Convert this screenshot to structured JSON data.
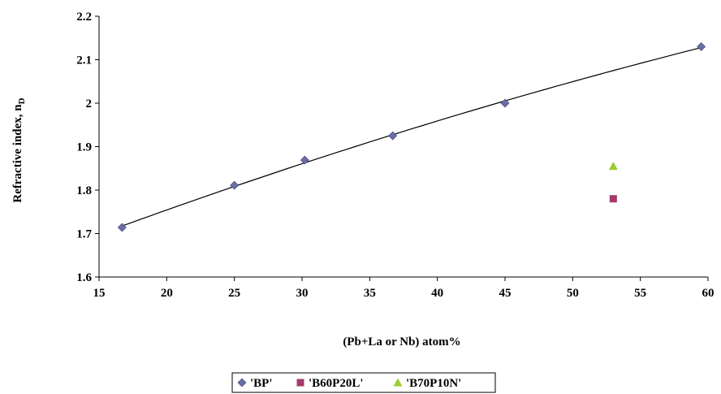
{
  "chart_data": {
    "type": "scatter",
    "title": "",
    "xlabel": "(Pb+La or Nb) atom%",
    "ylabel": "Refractive index, n",
    "ylabel_subscript": "D",
    "xlim": [
      15,
      60
    ],
    "ylim": [
      1.6,
      2.2
    ],
    "xticks": [
      "15",
      "20",
      "25",
      "30",
      "35",
      "40",
      "45",
      "50",
      "55",
      "60"
    ],
    "yticks": [
      "1.6",
      "1.7",
      "1.8",
      "1.9",
      "2",
      "2.1",
      "2.2"
    ],
    "grid": false,
    "legend_position": "bottom",
    "series": [
      {
        "name": "'BP'",
        "marker": "diamond",
        "color": "#6b6fa8",
        "points": [
          [
            16.7,
            1.714
          ],
          [
            25.0,
            1.811
          ],
          [
            30.2,
            1.869
          ],
          [
            36.7,
            1.925
          ],
          [
            45.0,
            2.0
          ],
          [
            59.5,
            2.13
          ]
        ]
      },
      {
        "name": "'B60P20L'",
        "marker": "square",
        "color": "#a53a6b",
        "points": [
          [
            53.0,
            1.78
          ]
        ]
      },
      {
        "name": "'B70P10N'",
        "marker": "triangle",
        "color": "#9acd32",
        "points": [
          [
            53.0,
            1.855
          ]
        ]
      }
    ],
    "trendline": {
      "series": "'BP'",
      "type": "polynomial",
      "color": "#000000"
    }
  }
}
